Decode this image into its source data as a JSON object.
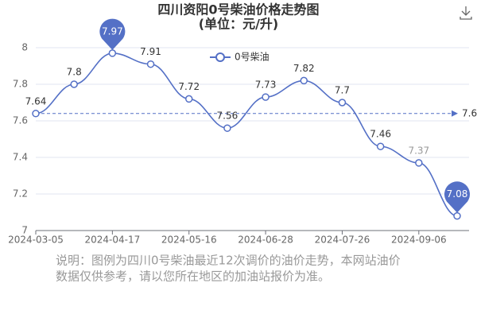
{
  "chart_data": {
    "type": "line",
    "title": "四川资阳0号柴油价格走势图",
    "subtitle": "(单位：元/升)",
    "categories": [
      "2024-03-05",
      null,
      "2024-04-17",
      null,
      "2024-05-16",
      null,
      "2024-06-28",
      null,
      "2024-07-26",
      null,
      "2024-09-06",
      null
    ],
    "series": [
      {
        "name": "0号柴油",
        "color": "#5470c6",
        "values": [
          7.64,
          7.8,
          7.97,
          7.91,
          7.72,
          7.56,
          7.73,
          7.82,
          7.7,
          7.46,
          7.37,
          7.08
        ]
      }
    ],
    "ylim": [
      7,
      8
    ],
    "yticks": [
      7,
      7.2,
      7.4,
      7.6,
      7.8,
      8
    ],
    "grid": true,
    "average_line": {
      "value": 7.64,
      "label": "7.6"
    },
    "note": [
      "说明：图例为四川0号柴油最近12次调价的油价走势，本网站油价",
      "数据仅供参考，请以您所在地区的加油站报价为准。"
    ]
  }
}
